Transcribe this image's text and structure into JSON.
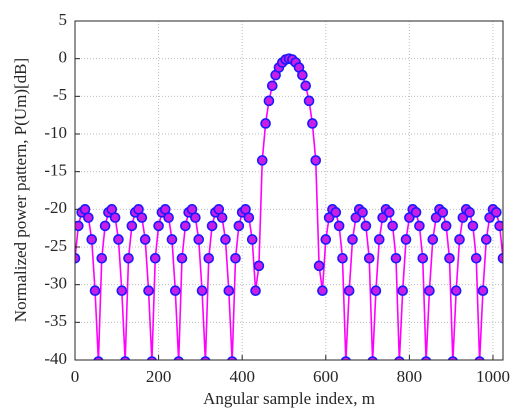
{
  "chart_data": {
    "type": "line",
    "xlabel": "Angular sample index, m",
    "ylabel": "Normalized power pattern, P(Um)[dB]",
    "x": [
      0,
      8,
      16,
      24,
      32,
      40,
      48,
      56,
      64,
      72,
      80,
      88,
      96,
      104,
      112,
      120,
      128,
      136,
      144,
      152,
      160,
      168,
      176,
      184,
      192,
      200,
      208,
      216,
      224,
      232,
      240,
      248,
      256,
      264,
      272,
      280,
      288,
      296,
      304,
      312,
      320,
      328,
      336,
      344,
      352,
      360,
      368,
      376,
      384,
      392,
      400,
      408,
      416,
      424,
      432,
      440,
      448,
      456,
      464,
      472,
      480,
      488,
      496,
      504,
      512,
      520,
      528,
      536,
      544,
      552,
      560,
      568,
      576,
      584,
      592,
      600,
      608,
      616,
      624,
      632,
      640,
      648,
      656,
      664,
      672,
      680,
      688,
      696,
      704,
      712,
      720,
      728,
      736,
      744,
      752,
      760,
      768,
      776,
      784,
      792,
      800,
      808,
      816,
      824,
      832,
      840,
      848,
      856,
      864,
      872,
      880,
      888,
      896,
      904,
      912,
      920,
      928,
      936,
      944,
      952,
      960,
      968,
      976,
      984,
      992,
      1000,
      1008,
      1016,
      1024
    ],
    "series": [
      {
        "color": "#ff00ff",
        "marker_face": "#c81ee6",
        "marker_edge": "#1a1aff",
        "values": [
          -26.5,
          -22.2,
          -20.4,
          -20.0,
          -21.1,
          -24.0,
          -30.8,
          -40.2,
          -26.5,
          -22.2,
          -20.4,
          -20.0,
          -21.1,
          -24.0,
          -30.8,
          -40.2,
          -26.5,
          -22.2,
          -20.4,
          -20.0,
          -21.1,
          -24.0,
          -30.8,
          -40.2,
          -26.5,
          -22.2,
          -20.4,
          -20.0,
          -21.1,
          -24.0,
          -30.8,
          -40.2,
          -26.5,
          -22.2,
          -20.4,
          -20.0,
          -21.1,
          -24.0,
          -30.8,
          -40.2,
          -26.5,
          -22.2,
          -20.4,
          -20.0,
          -21.1,
          -24.0,
          -30.8,
          -40.2,
          -26.5,
          -22.2,
          -20.4,
          -20.0,
          -21.1,
          -24.0,
          -30.8,
          -27.5,
          -13.5,
          -8.6,
          -5.6,
          -3.6,
          -2.18,
          -1.18,
          -0.51,
          -0.12,
          0,
          -0.12,
          -0.51,
          -1.18,
          -2.18,
          -3.6,
          -5.6,
          -8.6,
          -13.5,
          -27.5,
          -30.8,
          -24.0,
          -21.1,
          -20.0,
          -20.4,
          -22.2,
          -26.5,
          -40.2,
          -30.8,
          -24.0,
          -21.1,
          -20.0,
          -20.4,
          -22.2,
          -26.5,
          -40.2,
          -30.8,
          -24.0,
          -21.1,
          -20.0,
          -20.4,
          -22.2,
          -26.5,
          -40.2,
          -30.8,
          -24.0,
          -21.1,
          -20.0,
          -20.4,
          -22.2,
          -26.5,
          -40.2,
          -30.8,
          -24.0,
          -21.1,
          -20.0,
          -20.4,
          -22.2,
          -26.5,
          -40.2,
          -30.8,
          -24.0,
          -21.1,
          -20.0,
          -20.4,
          -22.2,
          -26.5,
          -40.2,
          -30.8,
          -24.0,
          -21.1,
          -20.0,
          -20.4,
          -22.2,
          -26.5
        ]
      }
    ],
    "xlim": [
      0,
      1024
    ],
    "xticks": [
      0,
      200,
      400,
      600,
      800,
      1000
    ],
    "ylim": [
      -40,
      5
    ],
    "yticks": [
      -40,
      -35,
      -30,
      -25,
      -20,
      -15,
      -10,
      -5,
      0,
      5
    ],
    "grid": true
  }
}
